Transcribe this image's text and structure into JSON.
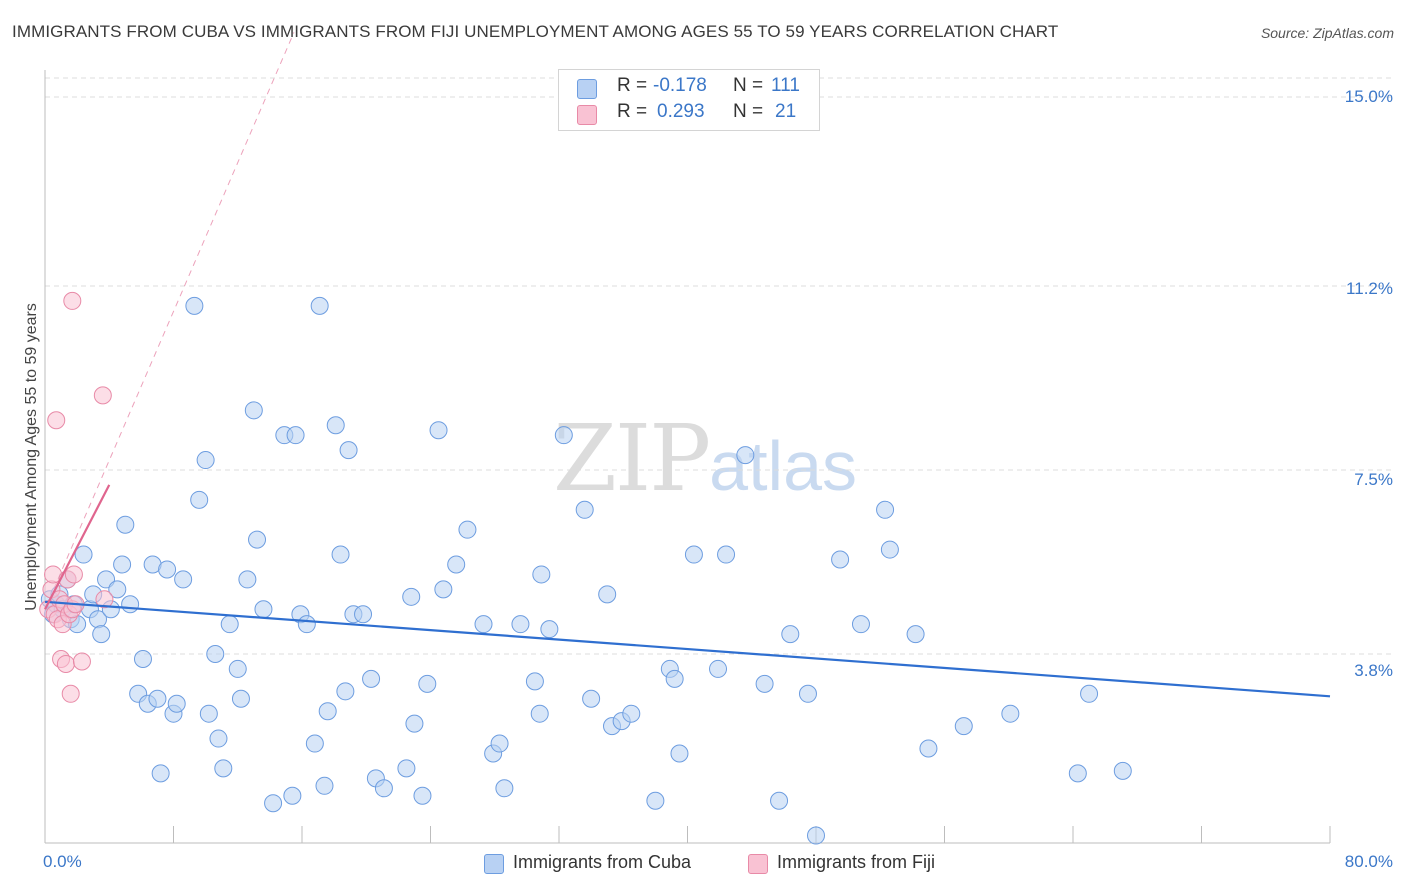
{
  "header": {
    "title": "IMMIGRANTS FROM CUBA VS IMMIGRANTS FROM FIJI UNEMPLOYMENT AMONG AGES 55 TO 59 YEARS CORRELATION CHART",
    "source": "Source: ZipAtlas.com"
  },
  "watermark": {
    "zip": "ZIP",
    "atlas": "atlas"
  },
  "legend_top": {
    "cuba": {
      "r_label": "R =",
      "r_value": "-0.178",
      "n_label": "N =",
      "n_value": "111"
    },
    "fiji": {
      "r_label": "R =",
      "r_value": "0.293",
      "n_label": "N =",
      "n_value": "21"
    }
  },
  "legend_bottom": {
    "cuba": "Immigrants from Cuba",
    "fiji": "Immigrants from Fiji"
  },
  "colors": {
    "cuba_fill": "#b8d1f3",
    "cuba_stroke": "#6d9de0",
    "cuba_line": "#2f6fd0",
    "fiji_fill": "#f9c2d3",
    "fiji_stroke": "#e88aa7",
    "fiji_line": "#e0658e",
    "grid": "#dcdcdc",
    "tick_text": "#3b77c8"
  },
  "chart_data": {
    "type": "scatter",
    "title": "IMMIGRANTS FROM CUBA VS IMMIGRANTS FROM FIJI UNEMPLOYMENT AMONG AGES 55 TO 59 YEARS CORRELATION CHART",
    "xlabel": "",
    "ylabel": "Unemployment Among Ages 55 to 59 years",
    "xlim": [
      0,
      80
    ],
    "ylim": [
      0,
      15.5
    ],
    "x_ticks": [
      "0.0%",
      "80.0%"
    ],
    "y_ticks": [
      {
        "value": 3.8,
        "label": "3.8%"
      },
      {
        "value": 7.5,
        "label": "7.5%"
      },
      {
        "value": 11.2,
        "label": "11.2%"
      },
      {
        "value": 15.0,
        "label": "15.0%"
      }
    ],
    "grid": "horizontal dashed",
    "legend_position": "top-center",
    "series": [
      {
        "name": "Immigrants from Cuba",
        "r": -0.178,
        "n": 111,
        "trend": [
          [
            0,
            4.85
          ],
          [
            80,
            2.95
          ]
        ],
        "points": [
          [
            0.3,
            4.9
          ],
          [
            0.5,
            4.6
          ],
          [
            0.7,
            4.8
          ],
          [
            0.9,
            5.0
          ],
          [
            1.1,
            4.7
          ],
          [
            1.4,
            5.3
          ],
          [
            1.6,
            4.5
          ],
          [
            1.8,
            4.8
          ],
          [
            2.0,
            4.4
          ],
          [
            2.4,
            5.8
          ],
          [
            2.8,
            4.7
          ],
          [
            3.0,
            5.0
          ],
          [
            3.3,
            4.5
          ],
          [
            3.5,
            4.2
          ],
          [
            3.8,
            5.3
          ],
          [
            4.1,
            4.7
          ],
          [
            4.5,
            5.1
          ],
          [
            4.8,
            5.6
          ],
          [
            5.0,
            6.4
          ],
          [
            5.3,
            4.8
          ],
          [
            5.8,
            3.0
          ],
          [
            6.1,
            3.7
          ],
          [
            6.4,
            2.8
          ],
          [
            6.7,
            5.6
          ],
          [
            7.0,
            2.9
          ],
          [
            7.2,
            1.4
          ],
          [
            7.6,
            5.5
          ],
          [
            8.0,
            2.6
          ],
          [
            8.2,
            2.8
          ],
          [
            8.6,
            5.3
          ],
          [
            9.3,
            10.8
          ],
          [
            9.6,
            6.9
          ],
          [
            10.0,
            7.7
          ],
          [
            10.2,
            2.6
          ],
          [
            10.6,
            3.8
          ],
          [
            10.8,
            2.1
          ],
          [
            11.1,
            1.5
          ],
          [
            11.5,
            4.4
          ],
          [
            12.0,
            3.5
          ],
          [
            12.2,
            2.9
          ],
          [
            12.6,
            5.3
          ],
          [
            13.0,
            8.7
          ],
          [
            13.2,
            6.1
          ],
          [
            13.6,
            4.7
          ],
          [
            14.2,
            0.8
          ],
          [
            14.9,
            8.2
          ],
          [
            15.4,
            0.95
          ],
          [
            15.6,
            8.2
          ],
          [
            15.9,
            4.6
          ],
          [
            16.3,
            4.4
          ],
          [
            16.8,
            2.0
          ],
          [
            17.1,
            10.8
          ],
          [
            17.4,
            1.15
          ],
          [
            17.6,
            2.65
          ],
          [
            18.1,
            8.4
          ],
          [
            18.4,
            5.8
          ],
          [
            18.7,
            3.05
          ],
          [
            18.9,
            7.9
          ],
          [
            19.2,
            4.6
          ],
          [
            19.8,
            4.6
          ],
          [
            20.3,
            3.3
          ],
          [
            20.6,
            1.3
          ],
          [
            21.1,
            1.1
          ],
          [
            22.5,
            1.5
          ],
          [
            22.8,
            4.95
          ],
          [
            23.0,
            2.4
          ],
          [
            23.5,
            0.95
          ],
          [
            23.8,
            3.2
          ],
          [
            24.5,
            8.3
          ],
          [
            24.8,
            5.1
          ],
          [
            25.6,
            5.6
          ],
          [
            26.3,
            6.3
          ],
          [
            27.3,
            4.4
          ],
          [
            27.9,
            1.8
          ],
          [
            28.3,
            2.0
          ],
          [
            28.6,
            1.1
          ],
          [
            29.6,
            4.4
          ],
          [
            30.5,
            3.25
          ],
          [
            30.8,
            2.6
          ],
          [
            30.9,
            5.4
          ],
          [
            31.4,
            4.3
          ],
          [
            32.3,
            8.2
          ],
          [
            33.6,
            6.7
          ],
          [
            34.0,
            2.9
          ],
          [
            35.0,
            5.0
          ],
          [
            35.3,
            2.35
          ],
          [
            35.9,
            2.45
          ],
          [
            36.5,
            2.6
          ],
          [
            38.0,
            0.85
          ],
          [
            38.9,
            3.5
          ],
          [
            39.2,
            3.3
          ],
          [
            39.5,
            1.8
          ],
          [
            40.4,
            5.8
          ],
          [
            41.9,
            3.5
          ],
          [
            42.4,
            5.8
          ],
          [
            43.6,
            7.8
          ],
          [
            44.8,
            3.2
          ],
          [
            45.7,
            0.85
          ],
          [
            46.4,
            4.2
          ],
          [
            47.5,
            3.0
          ],
          [
            48.0,
            0.15
          ],
          [
            49.5,
            5.7
          ],
          [
            50.8,
            4.4
          ],
          [
            52.3,
            6.7
          ],
          [
            52.6,
            5.9
          ],
          [
            54.2,
            4.2
          ],
          [
            55.0,
            1.9
          ],
          [
            57.2,
            2.35
          ],
          [
            60.1,
            2.6
          ],
          [
            64.3,
            1.4
          ],
          [
            65.0,
            3.0
          ],
          [
            67.1,
            1.45
          ]
        ]
      },
      {
        "name": "Immigrants from Fiji",
        "r": 0.293,
        "n": 21,
        "trend": [
          [
            0,
            4.7
          ],
          [
            4.0,
            7.2
          ]
        ],
        "trend_extended": [
          [
            0,
            4.7
          ],
          [
            15.5,
            16.3
          ]
        ],
        "points": [
          [
            0.2,
            4.7
          ],
          [
            0.4,
            5.1
          ],
          [
            0.5,
            5.4
          ],
          [
            0.6,
            4.6
          ],
          [
            0.7,
            8.5
          ],
          [
            0.8,
            4.5
          ],
          [
            0.9,
            4.9
          ],
          [
            1.0,
            3.7
          ],
          [
            1.1,
            4.4
          ],
          [
            1.2,
            4.8
          ],
          [
            1.3,
            3.6
          ],
          [
            1.4,
            5.3
          ],
          [
            1.5,
            4.6
          ],
          [
            1.6,
            3.0
          ],
          [
            1.7,
            4.7
          ],
          [
            1.7,
            10.9
          ],
          [
            1.8,
            5.4
          ],
          [
            1.9,
            4.8
          ],
          [
            2.3,
            3.65
          ],
          [
            3.6,
            9.0
          ],
          [
            3.7,
            4.9
          ]
        ]
      }
    ]
  }
}
